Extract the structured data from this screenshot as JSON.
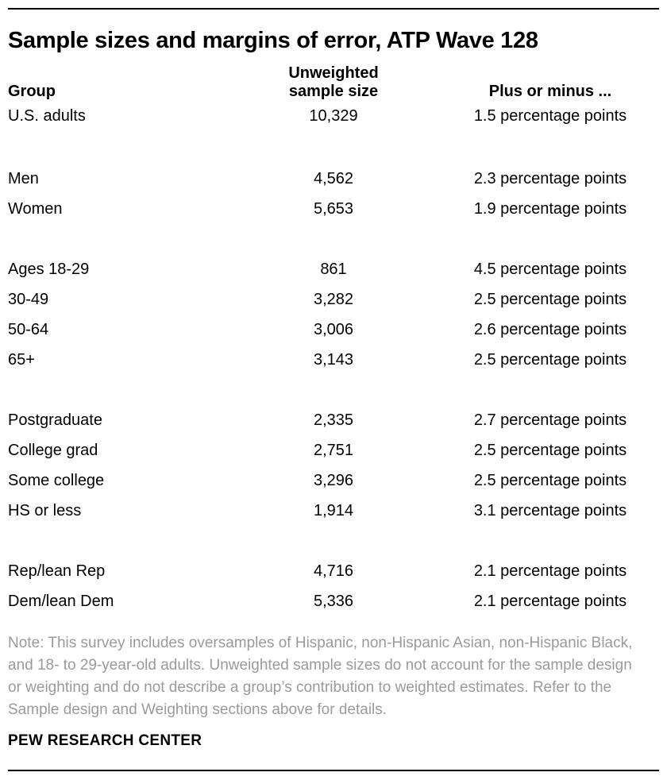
{
  "chart_data": {
    "type": "table",
    "title": "Sample sizes and margins of error, ATP Wave 128",
    "columns": {
      "group": "Group",
      "sample_size_line1": "Unweighted",
      "sample_size_line2": "sample size",
      "moe": "Plus or minus ..."
    },
    "rows": [
      {
        "group": "U.S. adults",
        "n": "10,329",
        "moe": "1.5 percentage points",
        "section": 0
      },
      {
        "group": "Men",
        "n": "4,562",
        "moe": "2.3 percentage points",
        "section": 1
      },
      {
        "group": "Women",
        "n": "5,653",
        "moe": "1.9 percentage points",
        "section": 1
      },
      {
        "group": "Ages 18-29",
        "n": "861",
        "moe": "4.5 percentage points",
        "section": 2
      },
      {
        "group": "30-49",
        "n": "3,282",
        "moe": "2.5 percentage points",
        "section": 2
      },
      {
        "group": "50-64",
        "n": "3,006",
        "moe": "2.6 percentage points",
        "section": 2
      },
      {
        "group": "65+",
        "n": "3,143",
        "moe": "2.5 percentage points",
        "section": 2
      },
      {
        "group": "Postgraduate",
        "n": "2,335",
        "moe": "2.7 percentage points",
        "section": 3
      },
      {
        "group": "College grad",
        "n": "2,751",
        "moe": "2.5 percentage points",
        "section": 3
      },
      {
        "group": "Some college",
        "n": "3,296",
        "moe": "2.5 percentage points",
        "section": 3
      },
      {
        "group": "HS or less",
        "n": "1,914",
        "moe": "3.1 percentage points",
        "section": 3
      },
      {
        "group": "Rep/lean Rep",
        "n": "4,716",
        "moe": "2.1 percentage points",
        "section": 4
      },
      {
        "group": "Dem/lean Dem",
        "n": "5,336",
        "moe": "2.1 percentage points",
        "section": 4
      }
    ],
    "note": "Note: This survey includes oversamples of Hispanic, non-Hispanic Asian, non-Hispanic Black, and 18- to 29-year-old adults. Unweighted sample sizes do not account for the sample design or weighting and do not describe a group’s contribution to weighted estimates. Refer to the Sample design and Weighting sections above for details.",
    "source": "PEW RESEARCH CENTER"
  },
  "colors": {
    "background": "#ffffff",
    "text": "#000000",
    "note_text": "#9a9a9a",
    "rule": "#000000"
  }
}
